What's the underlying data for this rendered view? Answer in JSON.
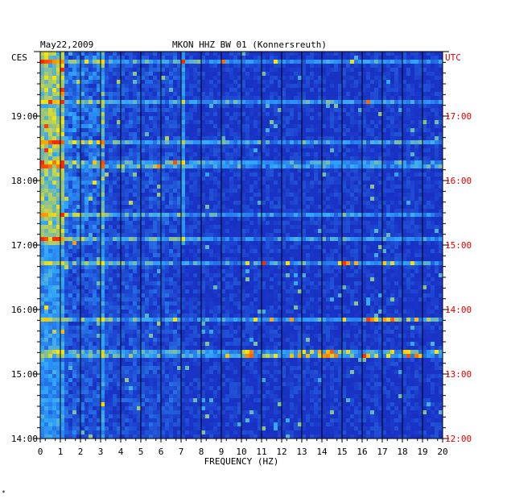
{
  "chart_data": {
    "type": "heatmap",
    "date": "May22,2009",
    "title": "MKON HHZ BW 01 (Konnersreuth)",
    "xlabel": "FREQUENCY (HZ)",
    "xlim": [
      0,
      20
    ],
    "x_ticks": [
      "0",
      "1",
      "2",
      "3",
      "4",
      "5",
      "6",
      "7",
      "8",
      "9",
      "10",
      "11",
      "12",
      "13",
      "14",
      "15",
      "16",
      "17",
      "18",
      "19",
      "20"
    ],
    "left_axis_label": "CES",
    "right_axis_label": "UTC",
    "left_ticks": [
      "19:00",
      "18:00",
      "17:00",
      "16:00",
      "15:00",
      "14:00"
    ],
    "right_ticks": [
      "17:00",
      "16:00",
      "15:00",
      "14:00",
      "13:00",
      "12:00"
    ],
    "time_range_ces": [
      "14:00",
      "20:00"
    ],
    "colors": {
      "background": "#1a34c8",
      "low": "#0a1e9a",
      "mid": "#2fa6ff",
      "high": "#ffe600",
      "peak": "#ff2a00",
      "grid": "#000000",
      "utc": "#e00000"
    },
    "footnote": "*"
  }
}
